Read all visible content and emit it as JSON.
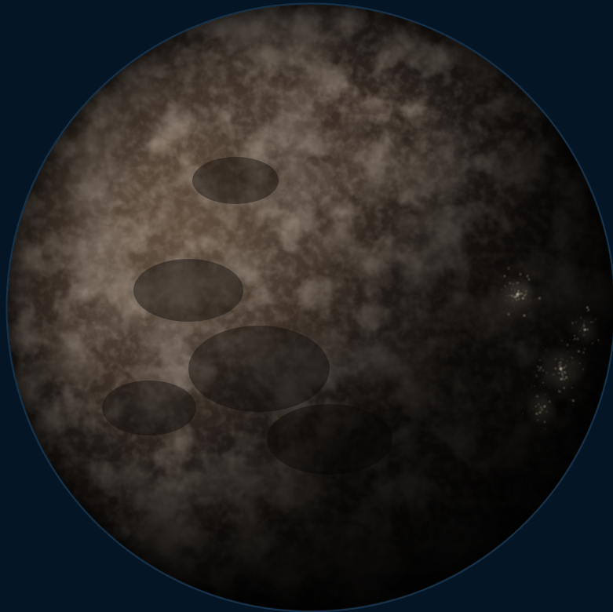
{
  "scene": {
    "colors": {
      "space": "#041526",
      "surface_light": "#6e5a48",
      "surface_mid": "#3d3129",
      "surface_dark": "#1e1916",
      "night": "#0b0908",
      "city_lights": "#e8dcc0",
      "atmosphere_rim": "#2a4a66"
    }
  }
}
